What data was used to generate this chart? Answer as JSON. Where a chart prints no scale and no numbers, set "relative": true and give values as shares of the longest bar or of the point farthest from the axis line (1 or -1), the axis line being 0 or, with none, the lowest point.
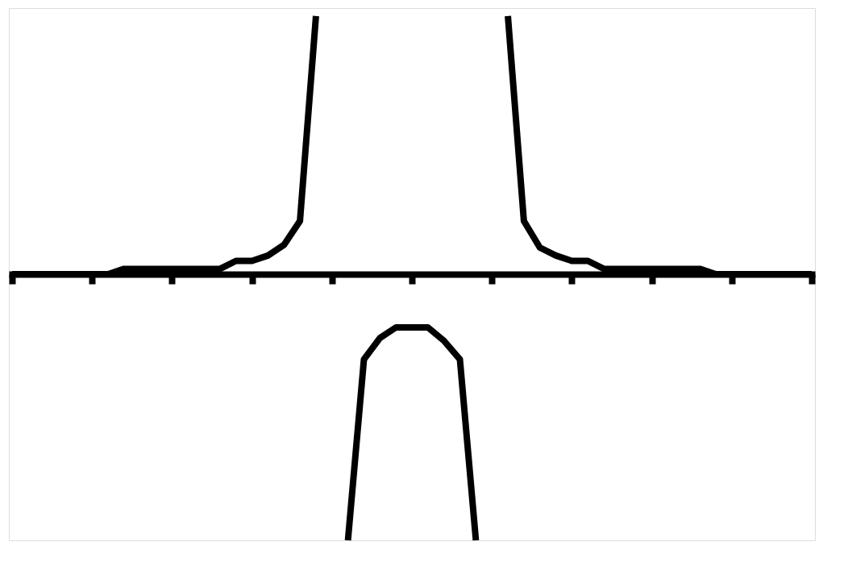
{
  "chart_data": {
    "type": "line",
    "relative": true,
    "grid": false,
    "tick_labels": false,
    "marker": "none",
    "line_style": "solid",
    "categories": [
      null,
      null,
      null,
      null,
      null,
      null,
      null,
      null,
      null,
      null,
      null,
      null,
      null,
      null,
      null,
      null,
      null,
      null,
      null,
      null,
      null,
      null,
      null,
      null,
      null,
      null,
      null,
      null,
      null,
      null,
      null,
      null,
      null,
      null,
      null,
      null,
      null,
      null,
      null,
      null,
      null,
      null,
      null,
      null,
      null,
      null,
      null,
      null,
      null,
      null,
      null
    ],
    "series": [
      {
        "color": "#000000",
        "values": [
          0,
          0,
          0,
          0,
          0,
          0,
          0,
          0.02,
          0.02,
          0.02,
          0.02,
          0.02,
          0.02,
          0.02,
          0.05,
          0.05,
          0.07,
          0.11,
          0.2,
          0.97,
          null,
          null,
          null,
          null,
          null,
          null,
          null,
          null,
          null,
          null,
          null,
          null,
          null,
          null,
          null,
          null,
          null,
          null,
          null,
          null,
          null,
          null,
          null,
          null,
          null,
          null,
          null,
          null,
          null,
          null,
          null
        ]
      },
      {
        "color": "#000000",
        "values": [
          null,
          null,
          null,
          null,
          null,
          null,
          null,
          null,
          null,
          null,
          null,
          null,
          null,
          null,
          null,
          null,
          null,
          null,
          null,
          null,
          null,
          -1,
          -0.32,
          -0.24,
          -0.2,
          -0.2,
          -0.2,
          -0.25,
          -0.32,
          -1,
          null,
          null,
          null,
          null,
          null,
          null,
          null,
          null,
          null,
          null,
          null,
          null,
          null,
          null,
          null,
          null,
          null,
          null,
          null,
          null,
          null
        ]
      },
      {
        "color": "#000000",
        "values": [
          null,
          null,
          null,
          null,
          null,
          null,
          null,
          null,
          null,
          null,
          null,
          null,
          null,
          null,
          null,
          null,
          null,
          null,
          null,
          null,
          null,
          null,
          null,
          null,
          null,
          null,
          null,
          null,
          null,
          null,
          null,
          0.97,
          0.2,
          0.1,
          0.07,
          0.05,
          0.05,
          0.02,
          0.02,
          0.02,
          0.02,
          0.02,
          0.02,
          0.02,
          0,
          0,
          0,
          0,
          0,
          0,
          0
        ]
      }
    ]
  }
}
